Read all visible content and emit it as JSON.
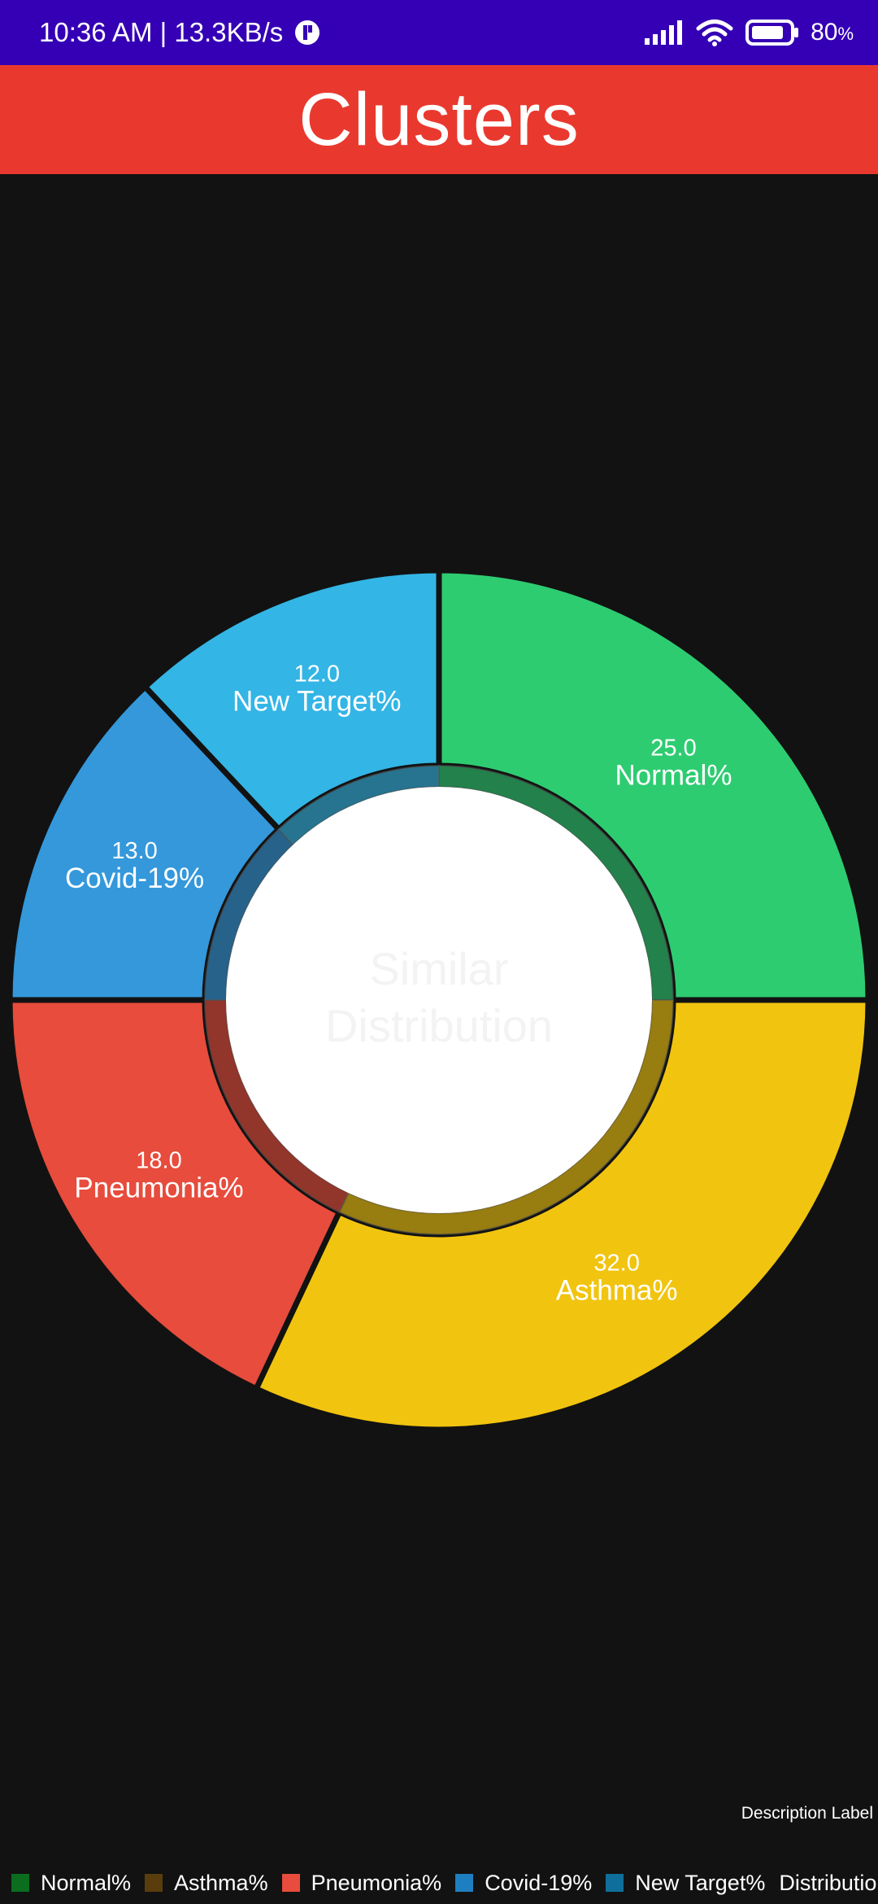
{
  "status_bar": {
    "time_speed": "10:36 AM | 13.3KB/s",
    "battery_value": "80",
    "battery_unit": "%"
  },
  "app_bar": {
    "title": "Clusters"
  },
  "chart_data": {
    "type": "pie",
    "style": "donut",
    "center_text_lines": [
      "Similar",
      "Distribution"
    ],
    "description_label": "Description Label",
    "legend_overflow_text": "Distribution r",
    "slices": [
      {
        "label": "Normal%",
        "value": 25.0,
        "value_text": "25.0",
        "color": "#2ecc71",
        "legend_color": "#0a6e1e"
      },
      {
        "label": "Asthma%",
        "value": 32.0,
        "value_text": "32.0",
        "color": "#f1c40f",
        "legend_color": "#5a3d0c"
      },
      {
        "label": "Pneumonia%",
        "value": 18.0,
        "value_text": "18.0",
        "color": "#e74c3c",
        "legend_color": "#e74c3c"
      },
      {
        "label": "Covid-19%",
        "value": 13.0,
        "value_text": "13.0",
        "color": "#3498db",
        "legend_color": "#1e7fc0"
      },
      {
        "label": "New Target%",
        "value": 12.0,
        "value_text": "12.0",
        "color": "#33b5e5",
        "legend_color": "#0f6f9a"
      }
    ]
  }
}
